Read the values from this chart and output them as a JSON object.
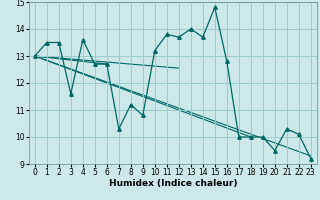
{
  "xlabel": "Humidex (Indice chaleur)",
  "bg_color": "#cce8e8",
  "grid_color": "#99cccc",
  "line_color": "#006666",
  "x_data": [
    0,
    1,
    2,
    3,
    4,
    5,
    6,
    7,
    8,
    9,
    10,
    11,
    12,
    13,
    14,
    15,
    16,
    17,
    18,
    19,
    20,
    21,
    22,
    23
  ],
  "y_main": [
    13.0,
    13.5,
    13.5,
    11.6,
    13.6,
    12.7,
    12.7,
    10.3,
    11.2,
    10.8,
    13.2,
    13.8,
    13.7,
    14.0,
    13.7,
    14.8,
    12.8,
    10.0,
    10.0,
    10.0,
    9.5,
    10.3,
    10.1,
    9.2
  ],
  "trend_lines": [
    {
      "x": [
        0,
        6
      ],
      "y": [
        13.0,
        12.7
      ]
    },
    {
      "x": [
        0,
        12
      ],
      "y": [
        13.0,
        12.55
      ]
    },
    {
      "x": [
        0,
        18
      ],
      "y": [
        13.0,
        10.0
      ]
    },
    {
      "x": [
        0,
        23
      ],
      "y": [
        13.0,
        9.3
      ]
    }
  ],
  "ylim": [
    9.0,
    15.0
  ],
  "xlim": [
    -0.5,
    23.5
  ],
  "yticks": [
    9,
    10,
    11,
    12,
    13,
    14,
    15
  ],
  "xticks": [
    0,
    1,
    2,
    3,
    4,
    5,
    6,
    7,
    8,
    9,
    10,
    11,
    12,
    13,
    14,
    15,
    16,
    17,
    18,
    19,
    20,
    21,
    22,
    23
  ],
  "tick_fontsize": 5.5,
  "xlabel_fontsize": 6.5
}
